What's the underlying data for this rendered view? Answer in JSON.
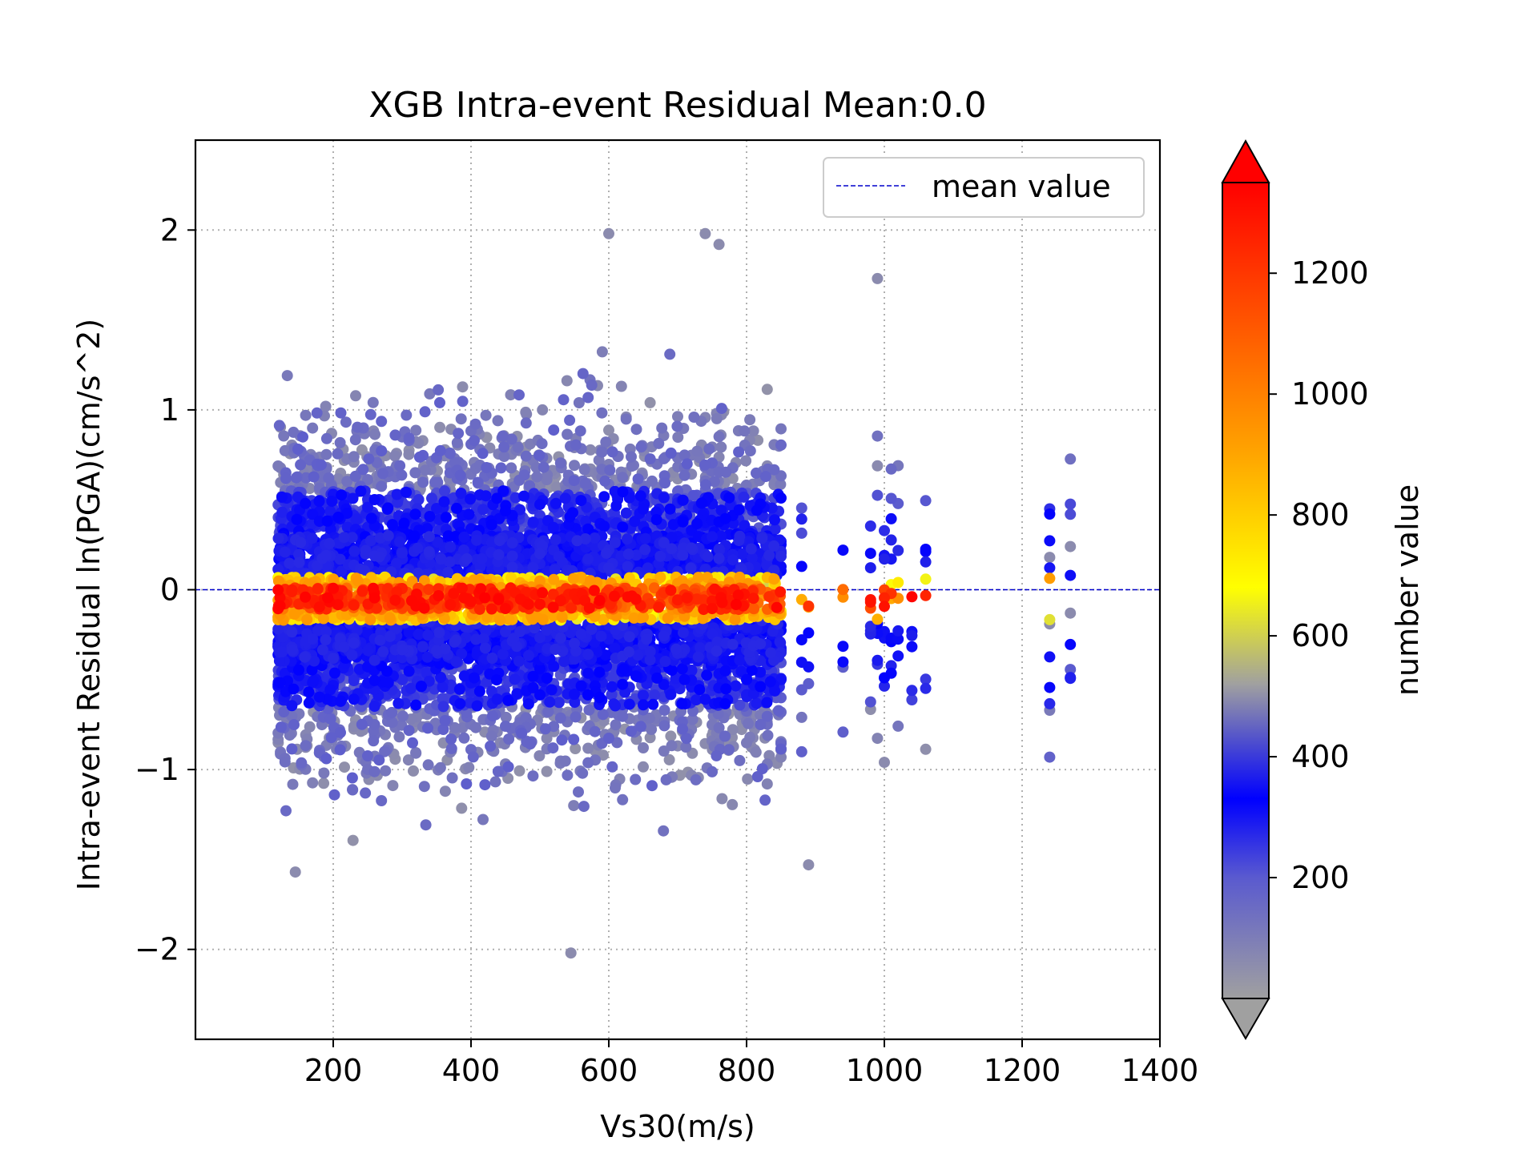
{
  "chart_data": {
    "type": "scatter",
    "title": "XGB Intra-event Residual Mean:0.0",
    "xlabel": "Vs30(m/s)",
    "ylabel": "Intra-event Residual ln(PGA)(cm/s^2)",
    "xlim": [
      0,
      1400
    ],
    "ylim": [
      -2.5,
      2.5
    ],
    "xticks": [
      200,
      400,
      600,
      800,
      1000,
      1200,
      1400
    ],
    "xtick_labels": [
      "200",
      "400",
      "600",
      "800",
      "1000",
      "1200",
      "1400"
    ],
    "yticks": [
      2,
      1,
      0,
      -1,
      -2
    ],
    "ytick_labels": [
      "2",
      "1",
      "0",
      "−1",
      "−2"
    ],
    "grid": true,
    "legend": {
      "position": "top-right",
      "entries": [
        {
          "label": "mean value",
          "color": "#0000cc",
          "style": "dashed"
        }
      ]
    },
    "mean_line": {
      "y": 0.0,
      "color": "#0000cc"
    },
    "colorbar": {
      "label": "number value",
      "ticks": [
        200,
        400,
        600,
        800,
        1000,
        1200
      ],
      "tick_labels": [
        "200",
        "400",
        "600",
        "800",
        "1000",
        "1200"
      ],
      "range": [
        0,
        1350
      ],
      "extend": "both",
      "colors": [
        {
          "v": 0,
          "c": "#a0a0a0"
        },
        {
          "v": 200,
          "c": "#5a5acf"
        },
        {
          "v": 330,
          "c": "#0000ff"
        },
        {
          "v": 420,
          "c": "#4a4ad0"
        },
        {
          "v": 520,
          "c": "#a0a0a0"
        },
        {
          "v": 680,
          "c": "#ffff00"
        },
        {
          "v": 900,
          "c": "#ffa500"
        },
        {
          "v": 1350,
          "c": "#ff0000"
        }
      ]
    },
    "point_count_approx": 6500,
    "station_columns_vs30": [
      120,
      130,
      140,
      150,
      160,
      170,
      180,
      190,
      200,
      210,
      220,
      230,
      240,
      250,
      260,
      270,
      280,
      290,
      300,
      310,
      320,
      330,
      340,
      350,
      360,
      370,
      380,
      390,
      400,
      410,
      420,
      430,
      440,
      450,
      460,
      470,
      480,
      490,
      500,
      510,
      520,
      530,
      540,
      550,
      560,
      570,
      580,
      590,
      600,
      610,
      620,
      630,
      640,
      650,
      660,
      670,
      680,
      690,
      700,
      710,
      720,
      730,
      740,
      750,
      760,
      770,
      780,
      790,
      800,
      810,
      820,
      830,
      840,
      850,
      880,
      890,
      940,
      980,
      1000,
      1010,
      1020,
      1040,
      1060,
      1240,
      1270
    ],
    "notable_points": [
      {
        "x": 760,
        "y": 1.92
      },
      {
        "x": 600,
        "y": 1.98
      },
      {
        "x": 740,
        "y": 1.98
      },
      {
        "x": 990,
        "y": 1.73
      },
      {
        "x": 545,
        "y": -2.02
      },
      {
        "x": 145,
        "y": -1.57
      },
      {
        "x": 890,
        "y": -1.53
      },
      {
        "x": 1000,
        "y": -0.96
      },
      {
        "x": 1240,
        "y": 0.18
      },
      {
        "x": 1270,
        "y": 0.24
      },
      {
        "x": 1240,
        "y": -0.19
      },
      {
        "x": 1270,
        "y": -0.13
      }
    ]
  },
  "colors": {
    "axis": "#000000",
    "grid": "#b0b0b0",
    "background": "#ffffff"
  }
}
